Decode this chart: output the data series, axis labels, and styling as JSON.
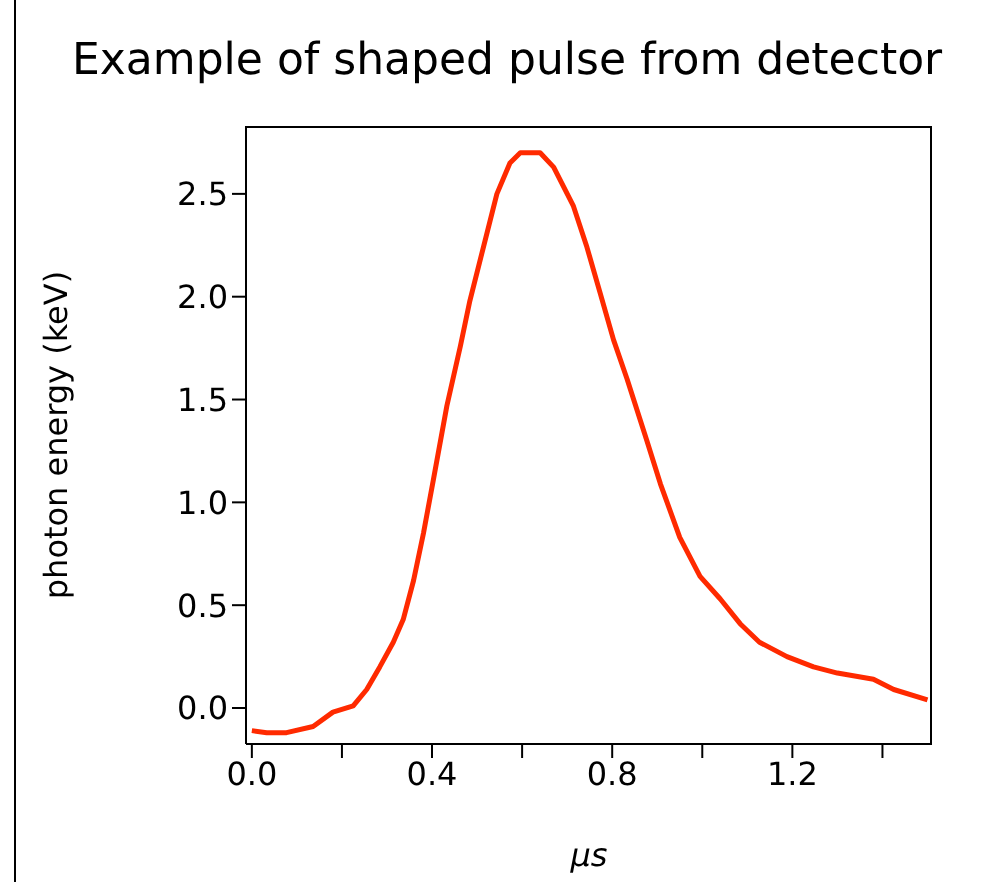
{
  "chart_data": {
    "type": "line",
    "title": "Example of shaped pulse from detector",
    "xlabel": "μs",
    "ylabel": "photon energy (keV)",
    "x": [
      0,
      0.033,
      0.077,
      0.136,
      0.18,
      0.225,
      0.255,
      0.284,
      0.314,
      0.336,
      0.359,
      0.381,
      0.403,
      0.433,
      0.463,
      0.484,
      0.514,
      0.544,
      0.573,
      0.596,
      0.64,
      0.67,
      0.714,
      0.744,
      0.773,
      0.803,
      0.833,
      0.877,
      0.907,
      0.95,
      0.995,
      1.04,
      1.084,
      1.127,
      1.188,
      1.247,
      1.3,
      1.38,
      1.425,
      1.5
    ],
    "series": [
      {
        "color": "#ff2a00",
        "values": [
          -0.11,
          -0.12,
          -0.12,
          -0.09,
          -0.02,
          0.01,
          0.09,
          0.2,
          0.32,
          0.43,
          0.62,
          0.85,
          1.11,
          1.47,
          1.76,
          1.98,
          2.24,
          2.5,
          2.65,
          2.7,
          2.7,
          2.63,
          2.44,
          2.24,
          2.02,
          1.79,
          1.6,
          1.3,
          1.09,
          0.83,
          0.64,
          0.53,
          0.41,
          0.32,
          0.25,
          0.2,
          0.17,
          0.14,
          0.09,
          0.04
        ]
      }
    ],
    "xlim": [
      -0.013,
      1.51
    ],
    "xticks": [
      {
        "value": 0,
        "label": "0.0"
      },
      {
        "value": 0.2,
        "label": null
      },
      0.4,
      {
        "value": 0.6,
        "label": null
      },
      0.8,
      {
        "value": 1.0,
        "label": null
      },
      1.2,
      {
        "value": 1.4,
        "label": null
      }
    ],
    "ylim": [
      -0.175,
      2.83
    ],
    "yticks": [
      {
        "value": 0,
        "label": "0.0"
      },
      0.5,
      {
        "value": 1,
        "label": "1.0"
      },
      1.5,
      {
        "value": 2,
        "label": "2.0"
      },
      2.5
    ],
    "grid": false,
    "legend": false,
    "marker": "none",
    "line_style": "solid"
  }
}
